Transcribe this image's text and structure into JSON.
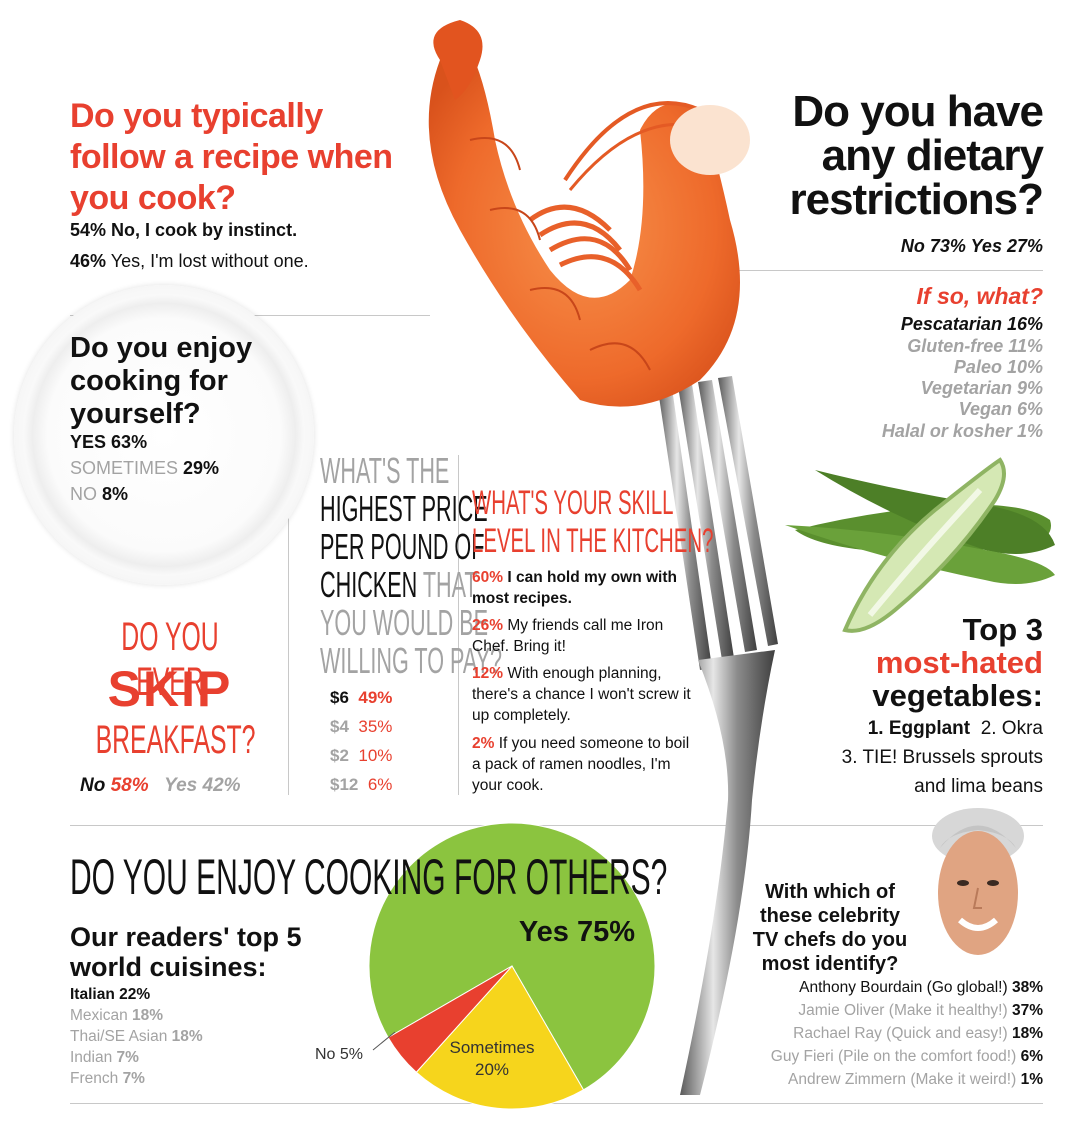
{
  "recipe": {
    "title": "Do you typically follow a recipe when you cook?",
    "answers": [
      {
        "pct": "54%",
        "text": "No, I cook by instinct."
      },
      {
        "pct": "46%",
        "text": "Yes, I'm lost without one."
      }
    ]
  },
  "dietary": {
    "title_lines": [
      "Do you have",
      "any dietary",
      "restrictions?"
    ],
    "no_label": "No",
    "no_pct": "73%",
    "yes_label": "Yes",
    "yes_pct": "27%",
    "followup_title": "If so, what?",
    "items": [
      {
        "name": "Pescatarian",
        "pct": "16%"
      },
      {
        "name": "Gluten-free",
        "pct": "11%"
      },
      {
        "name": "Paleo",
        "pct": "10%"
      },
      {
        "name": "Vegetarian",
        "pct": "9%"
      },
      {
        "name": "Vegan",
        "pct": "6%"
      },
      {
        "name": "Halal or kosher",
        "pct": "1%"
      }
    ]
  },
  "self_cooking": {
    "title": "Do you enjoy cooking for yourself?",
    "answers": [
      {
        "label": "YES",
        "pct": "63%"
      },
      {
        "label": "SOMETIMES",
        "pct": "29%"
      },
      {
        "label": "NO",
        "pct": "8%"
      }
    ]
  },
  "breakfast": {
    "line1": "DO YOU EVER",
    "line2": "SKIP",
    "line3": "BREAKFAST?",
    "no_label": "No",
    "no_pct": "58%",
    "yes_label": "Yes",
    "yes_pct": "42%"
  },
  "chicken": {
    "lines": [
      "WHAT'S THE",
      "HIGHEST PRICE",
      "PER POUND OF",
      "CHICKEN THAT",
      "YOU WOULD BE",
      "WILLING TO PAY?"
    ],
    "rows": [
      {
        "price": "$6",
        "pct": "49%"
      },
      {
        "price": "$4",
        "pct": "35%"
      },
      {
        "price": "$2",
        "pct": "10%"
      },
      {
        "price": "$12",
        "pct": "6%"
      }
    ]
  },
  "skill": {
    "title_lines": [
      "WHAT'S YOUR SKILL",
      "LEVEL IN THE KITCHEN?"
    ],
    "items": [
      {
        "pct": "60%",
        "text": "I can hold my own with most recipes."
      },
      {
        "pct": "26%",
        "text": "My friends call me Iron Chef. Bring it!"
      },
      {
        "pct": "12%",
        "text": "With enough planning, there's a chance I won't screw it up completely."
      },
      {
        "pct": "2%",
        "text": "If you need someone to boil a pack of ramen noodles, I'm your cook."
      }
    ]
  },
  "vegetables": {
    "title_lines": [
      "Top 3",
      "most-hated",
      "vegetables:"
    ],
    "line1_bold": "1. Eggplant",
    "line1_rest": "2. Okra",
    "line2": "3. TIE! Brussels sprouts",
    "line3": "and lima beans"
  },
  "others": {
    "title": "DO YOU ENJOY COOKING FOR OTHERS?",
    "yes_label": "Yes 75%",
    "sometimes_label": "Sometimes",
    "sometimes_pct": "20%",
    "no_label": "No 5%"
  },
  "cuisines": {
    "title_lines": [
      "Our readers' top 5",
      "world cuisines:"
    ],
    "items": [
      {
        "name": "Italian",
        "pct": "22%"
      },
      {
        "name": "Mexican",
        "pct": "18%"
      },
      {
        "name": "Thai/SE Asian",
        "pct": "18%"
      },
      {
        "name": "Indian",
        "pct": "7%"
      },
      {
        "name": "French",
        "pct": "7%"
      }
    ]
  },
  "chefs": {
    "title_lines": [
      "With which of",
      "these celebrity",
      "TV chefs do you",
      "most identify?"
    ],
    "items": [
      {
        "name": "Anthony Bourdain (Go global!)",
        "pct": "38%"
      },
      {
        "name": "Jamie Oliver (Make it healthy!)",
        "pct": "37%"
      },
      {
        "name": "Rachael Ray (Quick and easy!)",
        "pct": "18%"
      },
      {
        "name": "Guy Fieri (Pile on the comfort food!)",
        "pct": "6%"
      },
      {
        "name": "Andrew Zimmern (Make it weird!)",
        "pct": "1%"
      }
    ]
  },
  "chart_data": {
    "type": "pie",
    "categories": [
      "Yes",
      "Sometimes",
      "No"
    ],
    "values": [
      75,
      20,
      5
    ],
    "colors": [
      "#8bc43f",
      "#f6d51c",
      "#e8402f"
    ]
  },
  "colors": {
    "accent_red": "#e8402f",
    "muted_grey": "#a3a3a3",
    "pie_green": "#8bc43f",
    "pie_yellow": "#f6d51c",
    "shrimp": "#f06a2a"
  }
}
